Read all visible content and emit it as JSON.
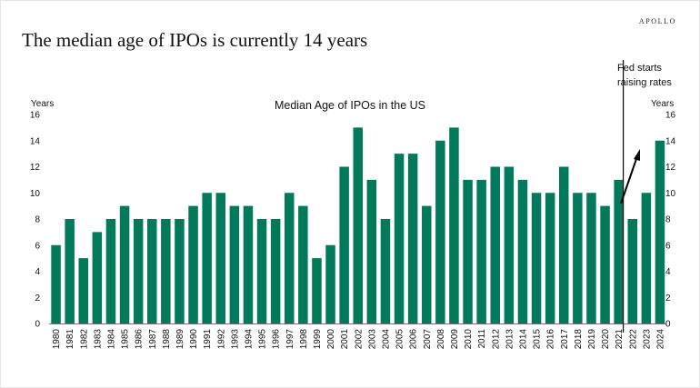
{
  "brand": "APOLLO",
  "headline": "The median age of IPOs is currently 14 years",
  "chart_data": {
    "type": "bar",
    "title": "Median Age of IPOs in the US",
    "ylabel_left": "Years",
    "ylabel_right": "Years",
    "ylim": [
      0,
      16
    ],
    "yticks": [
      0,
      2,
      4,
      6,
      8,
      10,
      12,
      14,
      16
    ],
    "categories": [
      "1980",
      "1981",
      "1982",
      "1983",
      "1984",
      "1985",
      "1986",
      "1987",
      "1988",
      "1989",
      "1990",
      "1991",
      "1992",
      "1993",
      "1994",
      "1995",
      "1996",
      "1997",
      "1998",
      "1999",
      "2000",
      "2001",
      "2002",
      "2003",
      "2004",
      "2005",
      "2006",
      "2007",
      "2008",
      "2009",
      "2010",
      "2011",
      "2012",
      "2013",
      "2014",
      "2015",
      "2016",
      "2017",
      "2018",
      "2019",
      "2020",
      "2021",
      "2022",
      "2023",
      "2024"
    ],
    "values": [
      6,
      8,
      5,
      7,
      8,
      9,
      8,
      8,
      8,
      8,
      9,
      10,
      10,
      9,
      9,
      8,
      8,
      10,
      9,
      5,
      6,
      12,
      15,
      11,
      8,
      13,
      13,
      9,
      14,
      15,
      11,
      11,
      12,
      12,
      11,
      10,
      10,
      12,
      10,
      10,
      9,
      11,
      8,
      10,
      14
    ],
    "bar_color": "#007a5a",
    "annotation": {
      "line1": "Fed starts",
      "line2": "raising rates",
      "position": "between 2021 and 2022",
      "arrow": "pointing up from 2022 to 2024"
    },
    "grid": false,
    "legend": "none"
  }
}
